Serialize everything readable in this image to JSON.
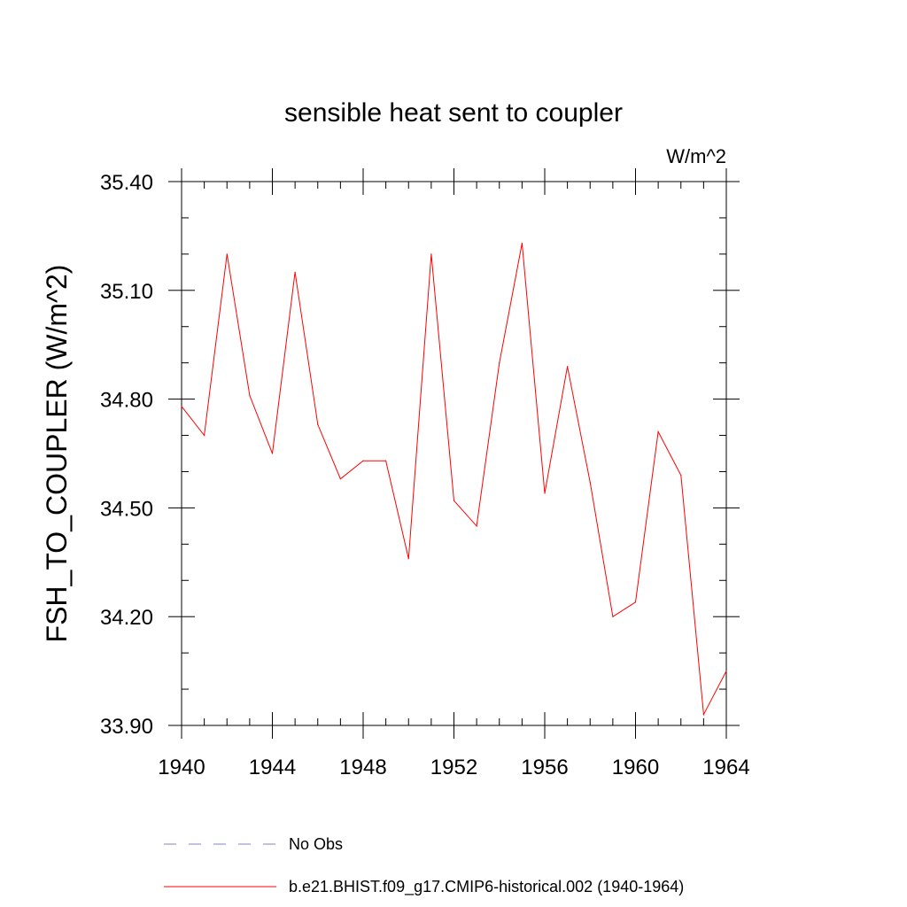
{
  "chart_data": {
    "type": "line",
    "title": "sensible heat sent to coupler",
    "units": "W/m^2",
    "ylabel": "FSH_TO_COUPLER  (W/m^2)",
    "xlabel": "",
    "xlim": [
      1940,
      1964
    ],
    "ylim": [
      33.9,
      35.4
    ],
    "xticks": [
      1940,
      1944,
      1948,
      1952,
      1956,
      1960,
      1964
    ],
    "xtick_labels": [
      "1940",
      "1944",
      "1948",
      "1952",
      "1956",
      "1960",
      "1964"
    ],
    "yticks": [
      33.9,
      34.2,
      34.5,
      34.8,
      35.1,
      35.4
    ],
    "ytick_labels": [
      "33.90",
      "34.20",
      "34.50",
      "34.80",
      "35.10",
      "35.40"
    ],
    "grid": false,
    "legend_position": "bottom",
    "series": [
      {
        "name": "b.e21.BHIST.f09_g17.CMIP6-historical.002 (1940-1964)",
        "color": "#ff0000",
        "style": "solid",
        "x": [
          1940,
          1941,
          1942,
          1943,
          1944,
          1945,
          1946,
          1947,
          1948,
          1949,
          1950,
          1951,
          1952,
          1953,
          1954,
          1955,
          1956,
          1957,
          1958,
          1959,
          1960,
          1961,
          1962,
          1963,
          1964
        ],
        "y": [
          34.78,
          34.7,
          35.2,
          34.81,
          34.65,
          35.15,
          34.73,
          34.58,
          34.63,
          34.63,
          34.36,
          35.2,
          34.52,
          34.45,
          34.9,
          35.23,
          34.54,
          34.89,
          34.57,
          34.2,
          34.24,
          34.71,
          34.59,
          33.93,
          34.05
        ]
      }
    ],
    "legend": [
      {
        "label": "No Obs",
        "color": "#8080c0",
        "style": "dashed"
      },
      {
        "label": "b.e21.BHIST.f09_g17.CMIP6-historical.002 (1940-1964)",
        "color": "#ff0000",
        "style": "solid"
      }
    ]
  }
}
